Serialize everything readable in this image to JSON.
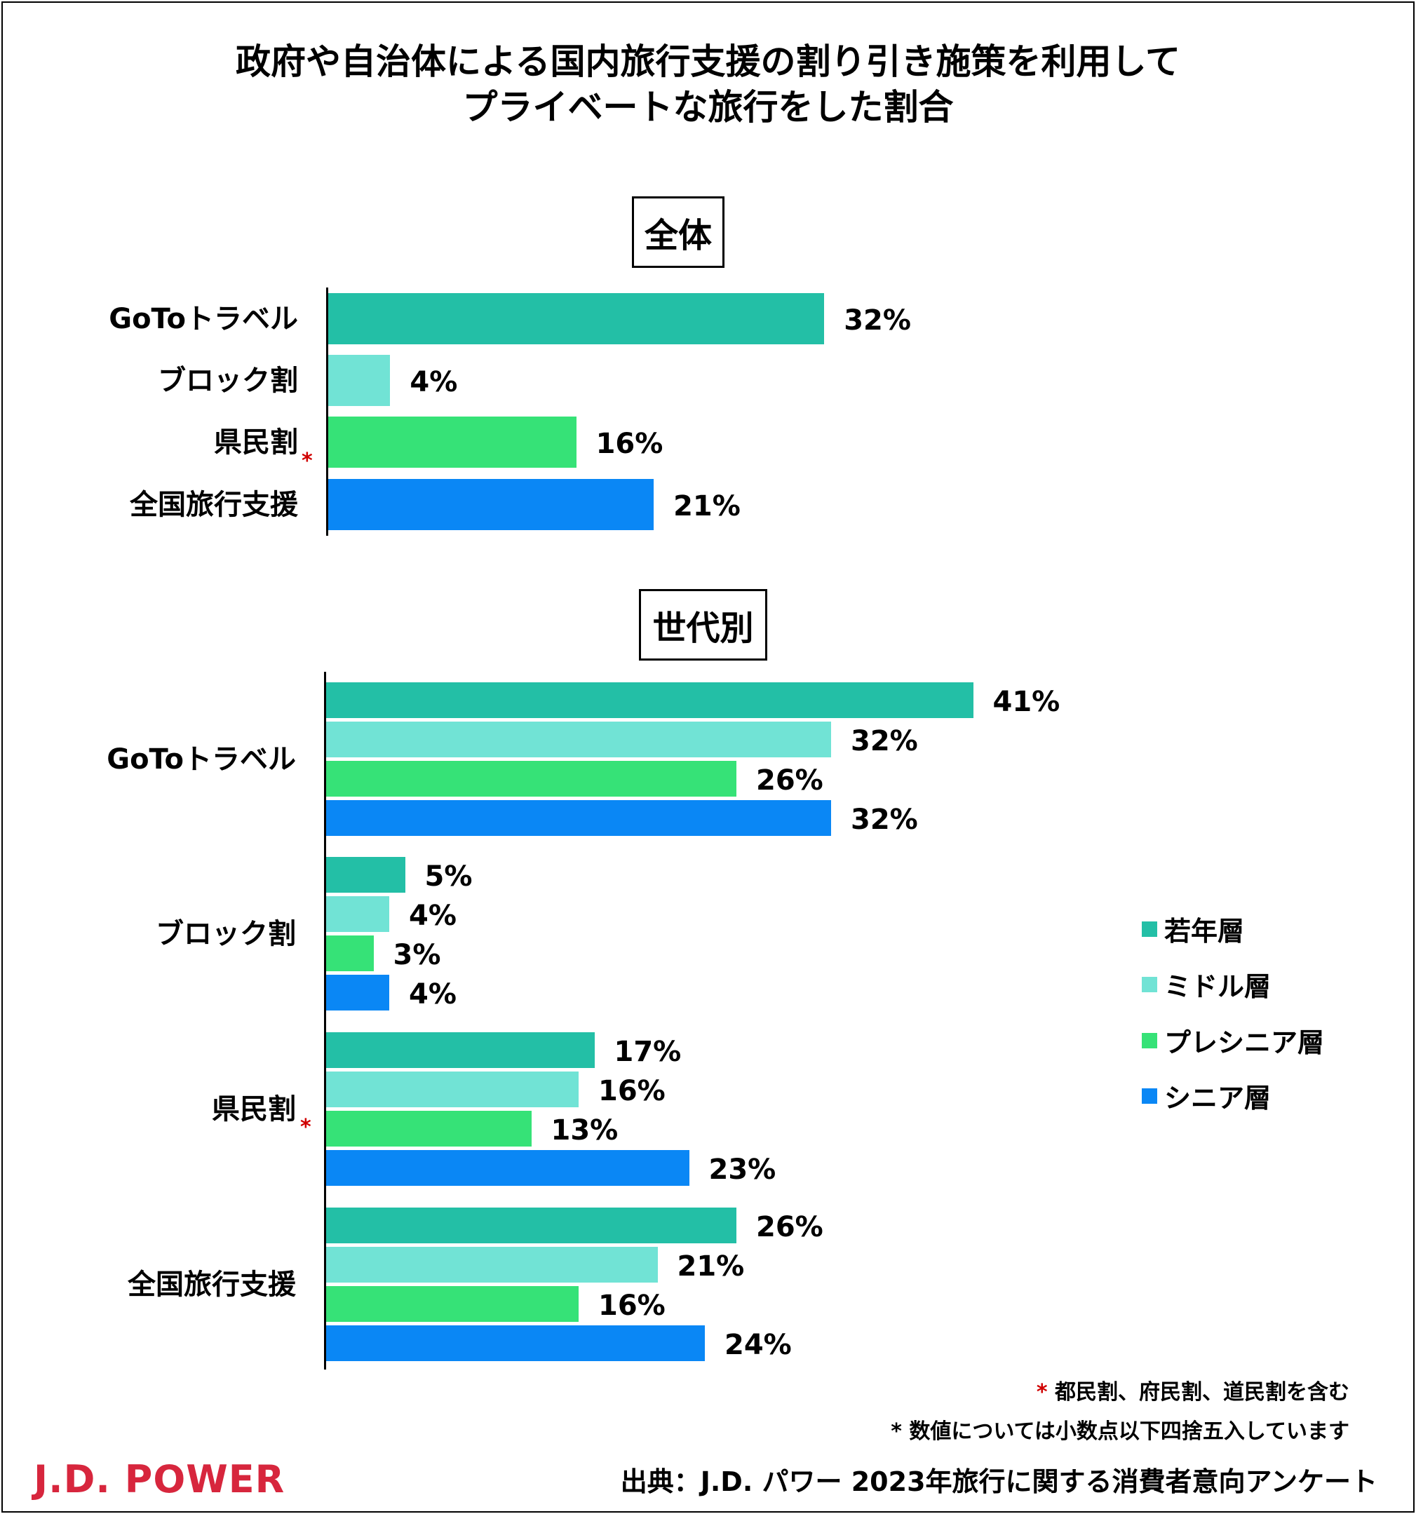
{
  "title_line1": "政府や自治体による国内旅行支援の割り引き施策を利用して",
  "title_line2": "プライベートな旅行をした割合",
  "colors": {
    "young": "#23BFA6",
    "middle": "#71E3D5",
    "presenior": "#36E277",
    "senior": "#0A87F5",
    "asterisk": "#D00000",
    "logo": "#D7263D"
  },
  "chart_data": [
    {
      "type": "bar",
      "title": "全体",
      "orientation": "horizontal",
      "categories": [
        "GoToトラベル",
        "ブロック割",
        "県民割",
        "全国旅行支援"
      ],
      "values": [
        32,
        4,
        16,
        21
      ],
      "colors": [
        "#23BFA6",
        "#71E3D5",
        "#36E277",
        "#0A87F5"
      ],
      "value_labels": [
        "32%",
        "4%",
        "16%",
        "21%"
      ],
      "unit": "%",
      "xlim": [
        0,
        50
      ],
      "grid": false
    },
    {
      "type": "bar",
      "title": "世代別",
      "orientation": "horizontal",
      "categories": [
        "GoToトラベル",
        "ブロック割",
        "県民割",
        "全国旅行支援"
      ],
      "series": [
        {
          "name": "若年層",
          "color": "#23BFA6",
          "values": [
            41,
            5,
            17,
            26
          ],
          "labels": [
            "41%",
            "5%",
            "17%",
            "26%"
          ]
        },
        {
          "name": "ミドル層",
          "color": "#71E3D5",
          "values": [
            32,
            4,
            16,
            21
          ],
          "labels": [
            "32%",
            "4%",
            "16%",
            "21%"
          ]
        },
        {
          "name": "プレシニア層",
          "color": "#36E277",
          "values": [
            26,
            3,
            13,
            16
          ],
          "labels": [
            "26%",
            "3%",
            "13%",
            "16%"
          ]
        },
        {
          "name": "シニア層",
          "color": "#0A87F5",
          "values": [
            32,
            4,
            23,
            24
          ],
          "labels": [
            "32%",
            "4%",
            "23%",
            "24%"
          ]
        }
      ],
      "unit": "%",
      "xlim": [
        0,
        50
      ],
      "legend": "right",
      "grid": false
    }
  ],
  "asterisk": "*",
  "notes": {
    "note1_mark": "*",
    "note1_text": "都民割、府民割、道民割を含む",
    "note2_mark": "*",
    "note2_text": "数値については小数点以下四捨五入しています"
  },
  "source": "出典：J.D. パワー 2023年旅行に関する消費者意向アンケート",
  "logo": "J.D. POWER"
}
